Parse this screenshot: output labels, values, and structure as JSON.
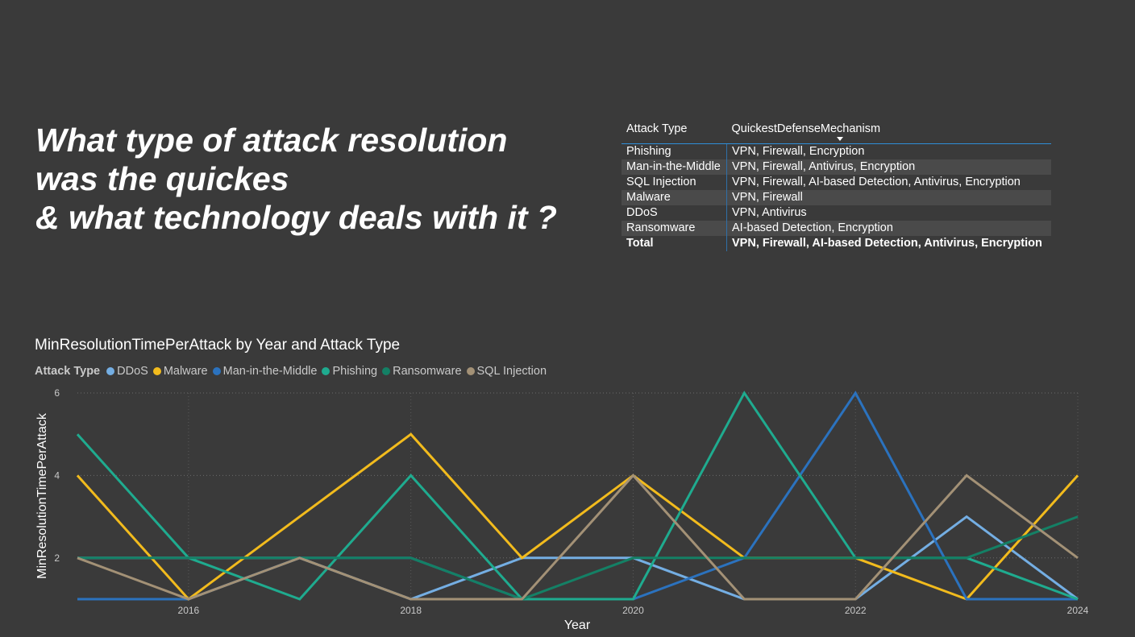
{
  "question": {
    "line1": "What type of attack resolution",
    "line2": "was the quickes",
    "line3": "& what technology deals with it ?"
  },
  "table": {
    "headers": [
      "Attack Type",
      "QuickestDefenseMechanism"
    ],
    "rows": [
      [
        "Phishing",
        "VPN, Firewall, Encryption"
      ],
      [
        "Man-in-the-Middle",
        "VPN, Firewall, Antivirus, Encryption"
      ],
      [
        "SQL Injection",
        "VPN, Firewall, AI-based Detection, Antivirus, Encryption"
      ],
      [
        "Malware",
        "VPN, Firewall"
      ],
      [
        "DDoS",
        "VPN, Antivirus"
      ],
      [
        "Ransomware",
        "AI-based Detection, Encryption"
      ]
    ],
    "total": [
      "Total",
      "VPN, Firewall, AI-based Detection, Antivirus, Encryption"
    ]
  },
  "chart_data": {
    "type": "line",
    "title": "MinResolutionTimePerAttack by Year and Attack Type",
    "legend_title": "Attack Type",
    "xlabel": "Year",
    "ylabel": "MinResolutionTimePerAttack",
    "x": [
      2015,
      2016,
      2017,
      2018,
      2019,
      2020,
      2021,
      2022,
      2023,
      2024
    ],
    "xticks": [
      2016,
      2018,
      2020,
      2022,
      2024
    ],
    "yticks": [
      2,
      4,
      6
    ],
    "ylim": [
      1,
      6
    ],
    "grid": true,
    "legend_position": "top-left",
    "series": [
      {
        "name": "DDoS",
        "color": "#74aee3",
        "values": [
          2,
          2,
          2,
          1,
          2,
          2,
          1,
          1,
          3,
          1
        ]
      },
      {
        "name": "Malware",
        "color": "#f2bb1d",
        "values": [
          4,
          1,
          3,
          5,
          2,
          4,
          2,
          2,
          1,
          4
        ]
      },
      {
        "name": "Man-in-the-Middle",
        "color": "#2b72be",
        "values": [
          1,
          1,
          2,
          2,
          1,
          1,
          2,
          6,
          1,
          1
        ]
      },
      {
        "name": "Phishing",
        "color": "#1fab8f",
        "values": [
          5,
          2,
          1,
          4,
          1,
          1,
          6,
          2,
          2,
          1
        ]
      },
      {
        "name": "Ransomware",
        "color": "#148065",
        "values": [
          2,
          2,
          2,
          2,
          1,
          2,
          2,
          2,
          2,
          3
        ]
      },
      {
        "name": "SQL Injection",
        "color": "#a39176",
        "values": [
          2,
          1,
          2,
          1,
          1,
          4,
          1,
          1,
          4,
          2
        ]
      }
    ]
  }
}
